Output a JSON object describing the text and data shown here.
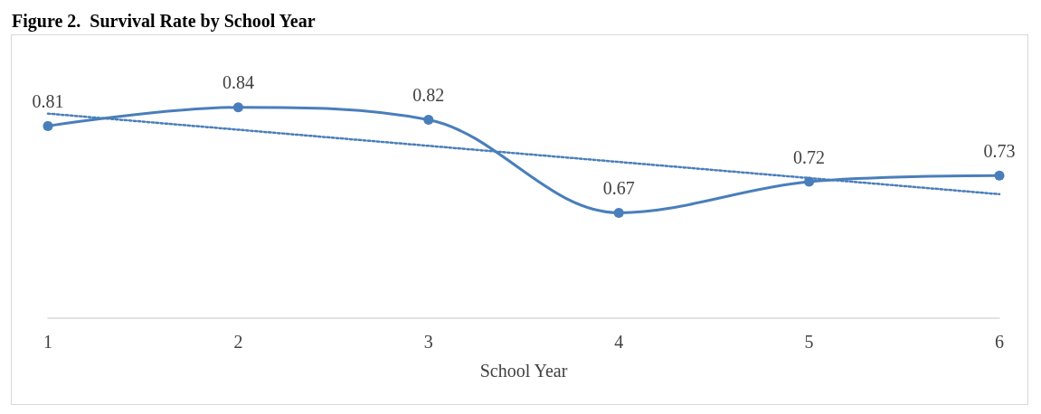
{
  "chart_data": {
    "type": "line",
    "title": "Figure 2.  Survival Rate by School Year",
    "xlabel": "School Year",
    "x": [
      1,
      2,
      3,
      4,
      5,
      6
    ],
    "xlim": [
      1,
      6
    ],
    "xticks": [
      1,
      2,
      3,
      4,
      5,
      6
    ],
    "tick_labels": "x",
    "grid": false,
    "series": [
      {
        "color": "#4a7ebb",
        "values": [
          0.81,
          0.84,
          0.82,
          0.67,
          0.72,
          0.73
        ],
        "marker": "circle",
        "line_style": "solid",
        "data_labels": true
      },
      {
        "type": "line",
        "color": "#4a7ebb",
        "x": [
          1,
          6
        ],
        "values": [
          0.83,
          0.7
        ],
        "marker": "none",
        "line_style": "dotted"
      }
    ]
  }
}
